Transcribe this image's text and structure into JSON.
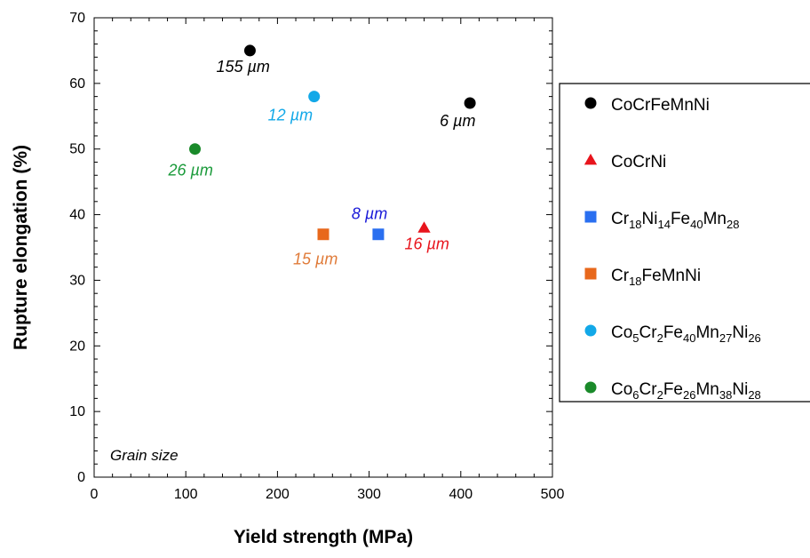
{
  "chart_data": {
    "type": "scatter",
    "xlabel": "Yield strength (MPa)",
    "ylabel": "Rupture elongation (%)",
    "xlim": [
      0,
      500
    ],
    "ylim": [
      0,
      70
    ],
    "xticks": [
      0,
      100,
      200,
      300,
      400,
      500
    ],
    "yticks": [
      0,
      10,
      20,
      30,
      40,
      50,
      60,
      70
    ],
    "grid": false,
    "legend_position": "right",
    "note": "Grain size",
    "series": [
      {
        "name": "CoCrFeMnNi",
        "name_parts": [
          {
            "t": "CoCrFeMnNi"
          }
        ],
        "marker": "circle",
        "color": "#000000",
        "points": [
          {
            "x": 170,
            "y": 65,
            "label": "155 µm"
          },
          {
            "x": 410,
            "y": 57,
            "label": "6 µm"
          }
        ]
      },
      {
        "name": "CoCrNi",
        "name_parts": [
          {
            "t": "CoCrNi"
          }
        ],
        "marker": "triangle",
        "color": "#e8141c",
        "points": [
          {
            "x": 360,
            "y": 38,
            "label": "16 µm"
          }
        ]
      },
      {
        "name": "Cr18Ni14Fe40Mn28",
        "name_parts": [
          {
            "t": "Cr"
          },
          {
            "t": "18",
            "sub": true
          },
          {
            "t": "Ni"
          },
          {
            "t": "14",
            "sub": true
          },
          {
            "t": "Fe"
          },
          {
            "t": "40",
            "sub": true
          },
          {
            "t": "Mn"
          },
          {
            "t": "28",
            "sub": true
          }
        ],
        "marker": "square",
        "color": "#2a6ff0",
        "label_color": "#1a1ad8",
        "points": [
          {
            "x": 310,
            "y": 37,
            "label": "8 µm"
          }
        ]
      },
      {
        "name": "Cr18FeMnNi",
        "name_parts": [
          {
            "t": "Cr"
          },
          {
            "t": "18",
            "sub": true
          },
          {
            "t": "FeMnNi"
          }
        ],
        "marker": "square",
        "color": "#e8681c",
        "label_color": "#e07b39",
        "points": [
          {
            "x": 250,
            "y": 37,
            "label": "15 µm"
          }
        ]
      },
      {
        "name": "Co5Cr2Fe40Mn27Ni26",
        "name_parts": [
          {
            "t": "Co"
          },
          {
            "t": "5",
            "sub": true
          },
          {
            "t": "Cr"
          },
          {
            "t": "2",
            "sub": true
          },
          {
            "t": "Fe"
          },
          {
            "t": "40",
            "sub": true
          },
          {
            "t": "Mn"
          },
          {
            "t": "27",
            "sub": true
          },
          {
            "t": "Ni"
          },
          {
            "t": "26",
            "sub": true
          }
        ],
        "marker": "circle",
        "color": "#12a8e8",
        "points": [
          {
            "x": 240,
            "y": 58,
            "label": "12 µm"
          }
        ]
      },
      {
        "name": "Co6Cr2Fe26Mn38Ni28",
        "name_parts": [
          {
            "t": "Co"
          },
          {
            "t": "6",
            "sub": true
          },
          {
            "t": "Cr"
          },
          {
            "t": "2",
            "sub": true
          },
          {
            "t": "Fe"
          },
          {
            "t": "26",
            "sub": true
          },
          {
            "t": "Mn"
          },
          {
            "t": "38",
            "sub": true
          },
          {
            "t": "Ni"
          },
          {
            "t": "28",
            "sub": true
          }
        ],
        "marker": "circle",
        "color": "#1a8a2a",
        "label_color": "#1a9a3a",
        "points": [
          {
            "x": 110,
            "y": 50,
            "label": "26 µm"
          }
        ]
      }
    ]
  }
}
